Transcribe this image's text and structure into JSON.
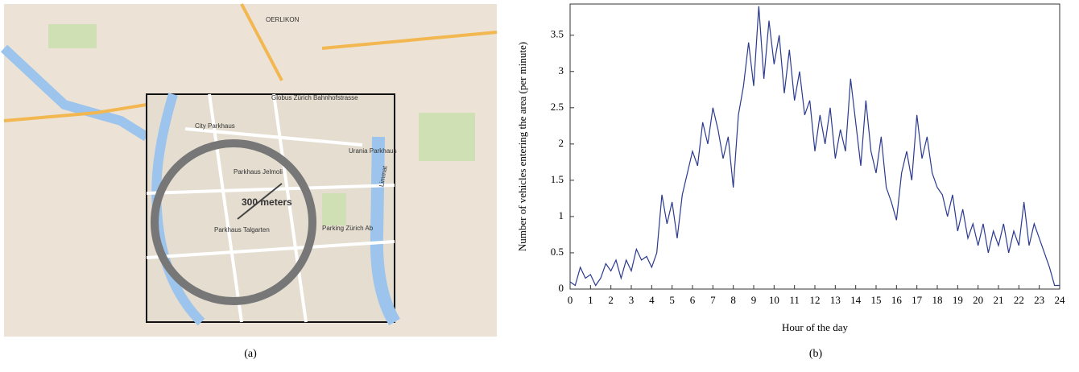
{
  "chart_data": {
    "type": "line",
    "x_label": "Hour of the day",
    "y_label": "Number of vehicles entering the area (per minute)",
    "x": [
      0,
      0.25,
      0.5,
      0.75,
      1,
      1.25,
      1.5,
      1.75,
      2,
      2.25,
      2.5,
      2.75,
      3,
      3.25,
      3.5,
      3.75,
      4,
      4.25,
      4.5,
      4.75,
      5,
      5.25,
      5.5,
      5.75,
      6,
      6.25,
      6.5,
      6.75,
      7,
      7.25,
      7.5,
      7.75,
      8,
      8.25,
      8.5,
      8.75,
      9,
      9.25,
      9.5,
      9.75,
      10,
      10.25,
      10.5,
      10.75,
      11,
      11.25,
      11.5,
      11.75,
      12,
      12.25,
      12.5,
      12.75,
      13,
      13.25,
      13.5,
      13.75,
      14,
      14.25,
      14.5,
      14.75,
      15,
      15.25,
      15.5,
      15.75,
      16,
      16.25,
      16.5,
      16.75,
      17,
      17.25,
      17.5,
      17.75,
      18,
      18.25,
      18.5,
      18.75,
      19,
      19.25,
      19.5,
      19.75,
      20,
      20.25,
      20.5,
      20.75,
      21,
      21.25,
      21.5,
      21.75,
      22,
      22.25,
      22.5,
      22.75,
      23,
      23.25,
      23.5,
      23.75,
      24
    ],
    "series": [
      {
        "color": "#2b3a8f",
        "values": [
          0.1,
          0.05,
          0.3,
          0.15,
          0.2,
          0.05,
          0.15,
          0.35,
          0.25,
          0.4,
          0.15,
          0.4,
          0.25,
          0.55,
          0.4,
          0.45,
          0.3,
          0.5,
          1.3,
          0.9,
          1.2,
          0.7,
          1.3,
          1.6,
          1.9,
          1.7,
          2.3,
          2.0,
          2.5,
          2.2,
          1.8,
          2.1,
          1.4,
          2.4,
          2.8,
          3.4,
          2.8,
          3.9,
          2.9,
          3.7,
          3.1,
          3.5,
          2.7,
          3.3,
          2.6,
          3.0,
          2.4,
          2.6,
          1.9,
          2.4,
          2.0,
          2.5,
          1.8,
          2.2,
          1.9,
          2.9,
          2.3,
          1.7,
          2.6,
          1.9,
          1.6,
          2.1,
          1.4,
          1.2,
          0.95,
          1.6,
          1.9,
          1.5,
          2.4,
          1.8,
          2.1,
          1.6,
          1.4,
          1.3,
          1.0,
          1.3,
          0.8,
          1.1,
          0.7,
          0.9,
          0.6,
          0.9,
          0.5,
          0.8,
          0.6,
          0.9,
          0.5,
          0.8,
          0.6,
          1.2,
          0.6,
          0.9,
          0.7,
          0.5,
          0.3,
          0.05,
          0.05
        ]
      }
    ],
    "xlim": [
      0,
      24
    ],
    "xticks": [
      0,
      1,
      2,
      3,
      4,
      5,
      6,
      7,
      8,
      9,
      10,
      11,
      12,
      13,
      14,
      15,
      16,
      17,
      18,
      19,
      20,
      21,
      22,
      23,
      24
    ],
    "ylim": [
      0,
      3.93
    ],
    "yticks": [
      0,
      0.5,
      1,
      1.5,
      2,
      2.5,
      3,
      3.5
    ],
    "grid": false
  },
  "map": {
    "radius_label": "300 meters",
    "places": [
      "City Parkhaus",
      "Parkhaus Jelmoli",
      "Urania Parkhaus",
      "Parkhaus Talgarten",
      "Parking Zürich Ab",
      "Globus Zürich Bahnhofstrasse",
      "OERLIKON",
      "Limmat"
    ]
  },
  "captions": [
    "(a)",
    "(b)"
  ]
}
